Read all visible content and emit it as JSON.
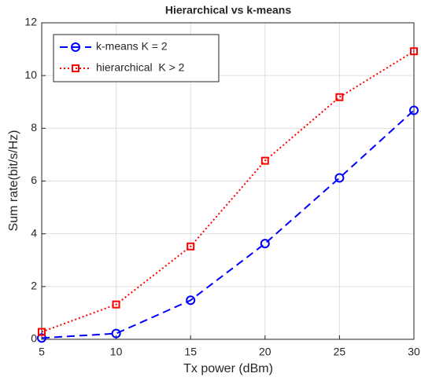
{
  "chart_data": {
    "type": "line",
    "title": "Hierarchical vs k-means",
    "xlabel": "Tx power (dBm)",
    "ylabel": "Sum rate(bit/s/Hz)",
    "x": [
      5,
      10,
      15,
      20,
      25,
      30
    ],
    "series": [
      {
        "name": "k-means K = 2",
        "color": "#0000ff",
        "style": "dashed",
        "marker": "circle",
        "values": [
          0.05,
          0.22,
          1.48,
          3.63,
          6.12,
          8.68
        ]
      },
      {
        "name": "hierarchical  K > 2",
        "color": "#ff0000",
        "style": "dotted",
        "marker": "square",
        "values": [
          0.28,
          1.32,
          3.52,
          6.77,
          9.18,
          10.92
        ]
      }
    ],
    "xlim": [
      5,
      30
    ],
    "xticks": [
      5,
      10,
      15,
      20,
      25,
      30
    ],
    "ylim": [
      0,
      12
    ],
    "yticks": [
      0,
      2,
      4,
      6,
      8,
      10,
      12
    ],
    "grid": true,
    "legend": "upper left"
  }
}
